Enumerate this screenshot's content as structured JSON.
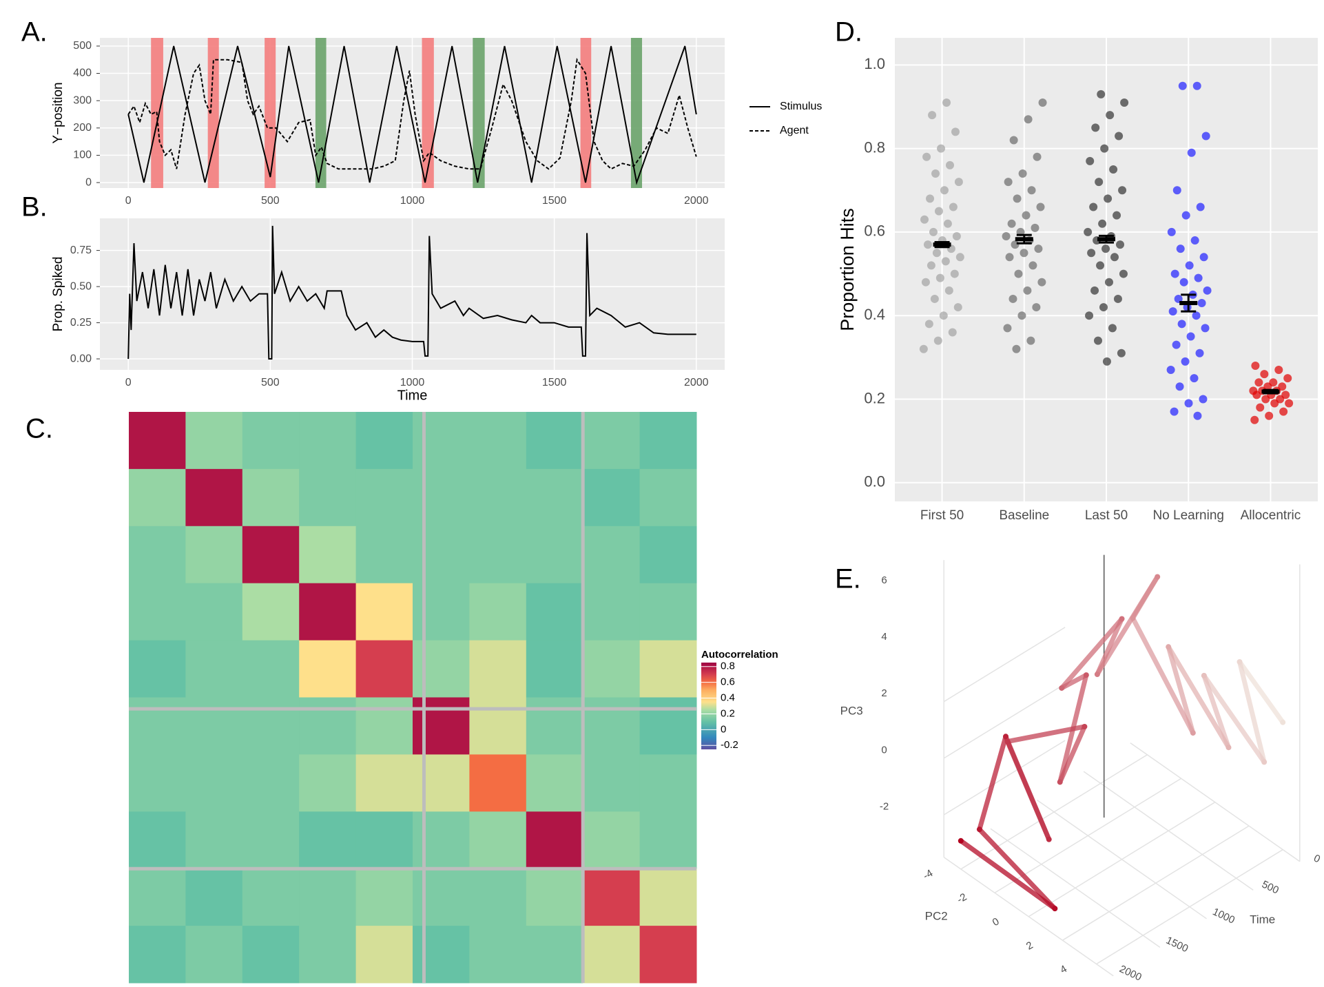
{
  "chart_data": [
    {
      "type": "line",
      "panel_label": "A.",
      "y_label": "Y−position",
      "xlim": [
        -100,
        2100
      ],
      "ylim": [
        -20,
        530
      ],
      "xticks": [
        0,
        500,
        1000,
        1500,
        2000
      ],
      "yticks": [
        0,
        100,
        200,
        300,
        400,
        500
      ],
      "grid": true,
      "legend": "right",
      "bands": [
        {
          "start": 80,
          "end": 123,
          "color": "#f47d7d"
        },
        {
          "start": 280,
          "end": 319,
          "color": "#f47d7d"
        },
        {
          "start": 480,
          "end": 519,
          "color": "#f47d7d"
        },
        {
          "start": 659,
          "end": 697,
          "color": "#6aa36a"
        },
        {
          "start": 1034,
          "end": 1076,
          "color": "#f47d7d"
        },
        {
          "start": 1213,
          "end": 1255,
          "color": "#6aa36a"
        },
        {
          "start": 1592,
          "end": 1630,
          "color": "#f47d7d"
        },
        {
          "start": 1770,
          "end": 1809,
          "color": "#6aa36a"
        }
      ],
      "series": [
        {
          "name": "Stimulus",
          "color": "#000000",
          "dash": "solid",
          "x": [
            0,
            55,
            160,
            270,
            385,
            500,
            565,
            670,
            760,
            850,
            945,
            1045,
            1140,
            1230,
            1325,
            1420,
            1510,
            1610,
            1700,
            1790,
            1960,
            2000
          ],
          "values": [
            250,
            0,
            500,
            0,
            500,
            20,
            500,
            0,
            500,
            0,
            500,
            0,
            500,
            0,
            500,
            0,
            500,
            0,
            500,
            0,
            500,
            250
          ]
        },
        {
          "name": "Agent",
          "color": "#000000",
          "dash": "dashed",
          "x": [
            0,
            20,
            40,
            60,
            80,
            100,
            110,
            130,
            150,
            170,
            200,
            230,
            250,
            270,
            290,
            300,
            350,
            400,
            420,
            440,
            460,
            490,
            520,
            560,
            600,
            640,
            660,
            680,
            700,
            740,
            800,
            860,
            900,
            940,
            970,
            990,
            1010,
            1040,
            1060,
            1100,
            1150,
            1200,
            1240,
            1280,
            1320,
            1350,
            1400,
            1440,
            1480,
            1520,
            1560,
            1580,
            1610,
            1640,
            1670,
            1700,
            1740,
            1780,
            1820,
            1860,
            1900,
            1940,
            1970,
            2000
          ],
          "values": [
            250,
            280,
            220,
            290,
            250,
            260,
            150,
            100,
            120,
            50,
            250,
            400,
            430,
            300,
            250,
            450,
            450,
            440,
            300,
            250,
            280,
            200,
            200,
            150,
            220,
            230,
            100,
            130,
            70,
            50,
            50,
            50,
            60,
            80,
            300,
            410,
            250,
            80,
            110,
            80,
            60,
            50,
            50,
            200,
            360,
            300,
            150,
            80,
            50,
            90,
            300,
            450,
            400,
            150,
            80,
            50,
            70,
            60,
            120,
            200,
            180,
            320,
            200,
            95
          ]
        }
      ]
    },
    {
      "type": "line",
      "panel_label": "B.",
      "y_label": "Prop. Spiked",
      "x_label": "Time",
      "xlim": [
        -100,
        2100
      ],
      "ylim": [
        -0.076,
        0.972
      ],
      "xticks": [
        0,
        500,
        1000,
        1500,
        2000
      ],
      "yticks": [
        {
          "value": 0,
          "label": "0.00"
        },
        {
          "value": 0.25,
          "label": "0.25"
        },
        {
          "value": 0.5,
          "label": "0.50"
        },
        {
          "value": 0.75,
          "label": "0.75"
        }
      ],
      "grid": true,
      "series": [
        {
          "color": "#000000",
          "dash": "solid",
          "x": [
            0,
            5,
            10,
            20,
            30,
            50,
            70,
            90,
            110,
            130,
            150,
            170,
            190,
            210,
            230,
            250,
            270,
            290,
            310,
            340,
            370,
            400,
            430,
            460,
            490,
            495,
            505,
            508,
            515,
            540,
            570,
            600,
            630,
            660,
            690,
            700,
            750,
            770,
            800,
            840,
            870,
            900,
            930,
            960,
            1000,
            1040,
            1045,
            1055,
            1060,
            1070,
            1100,
            1150,
            1180,
            1200,
            1250,
            1300,
            1350,
            1400,
            1420,
            1450,
            1500,
            1550,
            1595,
            1600,
            1610,
            1615,
            1625,
            1650,
            1700,
            1750,
            1800,
            1850,
            1900,
            2000
          ],
          "values": [
            0.0,
            0.45,
            0.2,
            0.8,
            0.4,
            0.6,
            0.35,
            0.62,
            0.3,
            0.65,
            0.35,
            0.6,
            0.3,
            0.62,
            0.3,
            0.55,
            0.4,
            0.6,
            0.35,
            0.55,
            0.4,
            0.5,
            0.4,
            0.45,
            0.45,
            0.0,
            0.0,
            0.92,
            0.45,
            0.6,
            0.4,
            0.5,
            0.4,
            0.45,
            0.35,
            0.47,
            0.47,
            0.3,
            0.2,
            0.25,
            0.15,
            0.2,
            0.15,
            0.13,
            0.12,
            0.12,
            0.02,
            0.02,
            0.85,
            0.45,
            0.35,
            0.4,
            0.3,
            0.35,
            0.28,
            0.3,
            0.27,
            0.25,
            0.3,
            0.25,
            0.25,
            0.22,
            0.22,
            0.02,
            0.02,
            0.87,
            0.3,
            0.35,
            0.3,
            0.22,
            0.25,
            0.18,
            0.17,
            0.17
          ]
        }
      ]
    },
    {
      "type": "heatmap",
      "panel_label": "C.",
      "legend_title": "Autocorrelation",
      "xlim": [
        0,
        2000
      ],
      "separators": [
        1040,
        1600
      ],
      "colorlim": [
        -0.25,
        0.85
      ],
      "colorticks": [
        0.8,
        0.6,
        0.4,
        0.2,
        0,
        -0.2
      ],
      "colorscale": [
        [
          -0.25,
          "#5e4fa2"
        ],
        [
          -0.1,
          "#3288bd"
        ],
        [
          0.1,
          "#66c2a5"
        ],
        [
          0.25,
          "#abdda4"
        ],
        [
          0.35,
          "#fee08b"
        ],
        [
          0.5,
          "#fdae61"
        ],
        [
          0.6,
          "#f46d43"
        ],
        [
          0.7,
          "#d53e4f"
        ],
        [
          0.85,
          "#9e0142"
        ]
      ],
      "values": [
        [
          0.8,
          0.2,
          0.15,
          0.15,
          0.1,
          0.15,
          0.15,
          0.1,
          0.15,
          0.1
        ],
        [
          0.2,
          0.8,
          0.2,
          0.15,
          0.15,
          0.15,
          0.15,
          0.15,
          0.1,
          0.15
        ],
        [
          0.15,
          0.2,
          0.8,
          0.25,
          0.15,
          0.15,
          0.15,
          0.15,
          0.15,
          0.1
        ],
        [
          0.15,
          0.15,
          0.25,
          0.8,
          0.35,
          0.15,
          0.2,
          0.1,
          0.15,
          0.15
        ],
        [
          0.1,
          0.15,
          0.15,
          0.35,
          0.7,
          0.2,
          0.3,
          0.1,
          0.2,
          0.3
        ],
        [
          0.15,
          0.15,
          0.15,
          0.15,
          0.2,
          0.8,
          0.3,
          0.15,
          0.15,
          0.1
        ],
        [
          0.15,
          0.15,
          0.15,
          0.2,
          0.3,
          0.3,
          0.6,
          0.2,
          0.15,
          0.15
        ],
        [
          0.1,
          0.15,
          0.15,
          0.1,
          0.1,
          0.15,
          0.2,
          0.8,
          0.2,
          0.15
        ],
        [
          0.15,
          0.1,
          0.15,
          0.15,
          0.2,
          0.15,
          0.15,
          0.2,
          0.7,
          0.3
        ],
        [
          0.1,
          0.15,
          0.1,
          0.15,
          0.3,
          0.1,
          0.15,
          0.15,
          0.3,
          0.7
        ]
      ]
    },
    {
      "type": "strip",
      "panel_label": "D.",
      "y_label": "Proportion Hits",
      "ylim": [
        -0.045,
        1.065
      ],
      "yticks": [
        {
          "value": 0,
          "label": "0.0"
        },
        {
          "value": 0.2,
          "label": "0.2"
        },
        {
          "value": 0.4,
          "label": "0.4"
        },
        {
          "value": 0.6,
          "label": "0.6"
        },
        {
          "value": 0.8,
          "label": "0.8"
        },
        {
          "value": 1,
          "label": "1.0"
        }
      ],
      "grid": true,
      "categories": [
        "First 50",
        "Baseline",
        "Last 50",
        "No Learning",
        "Allocentric"
      ],
      "colors": [
        "#a3a3a3",
        "#6b6b6b",
        "#333333",
        "#1f1fff",
        "#e00000"
      ],
      "means": [
        0.57,
        0.583,
        0.583,
        0.43,
        0.218
      ],
      "errors": [
        0.006,
        0.01,
        0.008,
        0.02,
        0.004
      ],
      "points": [
        [
          0.91,
          0.88,
          0.84,
          0.8,
          0.78,
          0.76,
          0.74,
          0.72,
          0.7,
          0.68,
          0.66,
          0.65,
          0.63,
          0.62,
          0.6,
          0.59,
          0.58,
          0.57,
          0.56,
          0.55,
          0.54,
          0.53,
          0.52,
          0.5,
          0.49,
          0.48,
          0.46,
          0.44,
          0.42,
          0.4,
          0.38,
          0.36,
          0.34,
          0.32
        ],
        [
          0.91,
          0.87,
          0.82,
          0.78,
          0.74,
          0.72,
          0.7,
          0.68,
          0.66,
          0.64,
          0.62,
          0.61,
          0.6,
          0.59,
          0.58,
          0.57,
          0.56,
          0.55,
          0.54,
          0.52,
          0.5,
          0.48,
          0.46,
          0.44,
          0.42,
          0.4,
          0.37,
          0.34,
          0.32
        ],
        [
          0.93,
          0.91,
          0.88,
          0.85,
          0.83,
          0.8,
          0.77,
          0.75,
          0.72,
          0.7,
          0.68,
          0.66,
          0.64,
          0.62,
          0.6,
          0.59,
          0.58,
          0.57,
          0.56,
          0.55,
          0.54,
          0.52,
          0.5,
          0.48,
          0.46,
          0.44,
          0.42,
          0.4,
          0.37,
          0.34,
          0.31,
          0.29
        ],
        [
          0.95,
          0.95,
          0.83,
          0.79,
          0.7,
          0.66,
          0.64,
          0.6,
          0.58,
          0.56,
          0.54,
          0.52,
          0.5,
          0.49,
          0.48,
          0.46,
          0.45,
          0.44,
          0.43,
          0.42,
          0.41,
          0.4,
          0.38,
          0.37,
          0.35,
          0.33,
          0.31,
          0.29,
          0.27,
          0.25,
          0.23,
          0.2,
          0.19,
          0.17,
          0.16
        ],
        [
          0.28,
          0.27,
          0.26,
          0.25,
          0.24,
          0.24,
          0.23,
          0.23,
          0.22,
          0.22,
          0.22,
          0.21,
          0.21,
          0.21,
          0.2,
          0.2,
          0.19,
          0.19,
          0.18,
          0.17,
          0.16,
          0.15
        ]
      ]
    },
    {
      "type": "line3d",
      "panel_label": "E.",
      "x_label": "PC2",
      "y_label": "Time",
      "z_label": "PC3",
      "xticks": [
        -4,
        -2,
        0,
        2,
        4
      ],
      "yticks": [
        0,
        500,
        1000,
        1500,
        2000
      ],
      "zticks": [
        -2,
        0,
        2,
        4,
        6
      ],
      "colors": [
        "#efe2da",
        "#b2001e"
      ],
      "x": [
        4,
        2,
        4,
        1,
        3,
        0,
        2,
        -1,
        1,
        -2,
        0,
        -3,
        -1,
        -2,
        0,
        -4,
        -1,
        -3,
        -4,
        1,
        -4
      ],
      "y": [
        0,
        100,
        200,
        300,
        400,
        500,
        600,
        700,
        800,
        900,
        1000,
        1100,
        1200,
        1300,
        1400,
        1500,
        1600,
        1700,
        1800,
        1900,
        2000
      ],
      "z": [
        1,
        2.5,
        0,
        2,
        0.5,
        3,
        1,
        4,
        6.5,
        2,
        5,
        1.5,
        3,
        -1,
        2,
        0,
        -2,
        1,
        -2.5,
        -3,
        -2.5
      ]
    }
  ]
}
